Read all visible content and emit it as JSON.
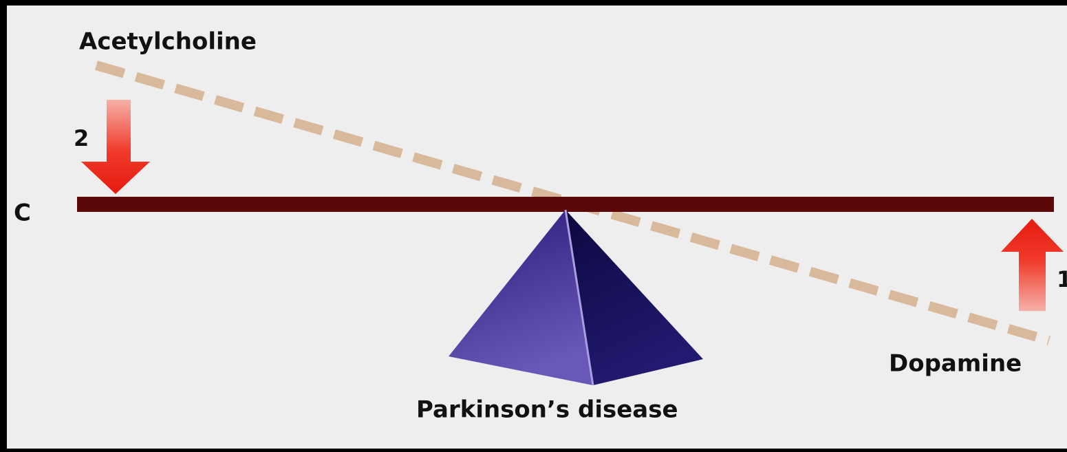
{
  "diagram": {
    "top_label": "Acetylcholine",
    "left_arrow_number": "2",
    "left_end_label": "C",
    "right_arrow_number": "1",
    "bottom_right_label": "Dopamine",
    "fulcrum_label": "Parkinson’s disease"
  }
}
